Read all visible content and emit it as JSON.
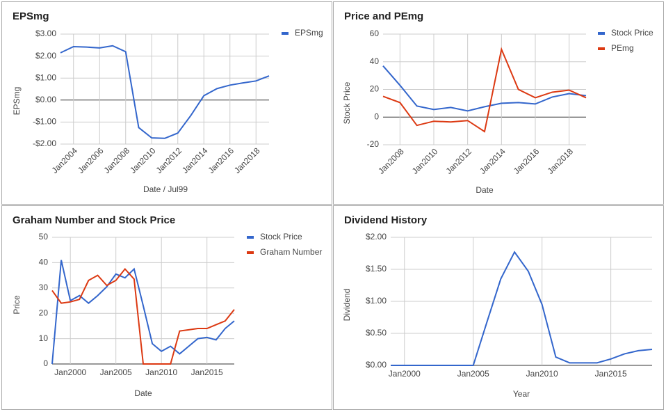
{
  "chart_data": [
    {
      "type": "line",
      "title": "EPSmg",
      "x_label": "Date / Jul99",
      "y_label": "EPSmg",
      "x": [
        2003,
        2004,
        2005,
        2006,
        2007,
        2008,
        2009,
        2010,
        2011,
        2012,
        2013,
        2014,
        2015,
        2016,
        2017,
        2018,
        2019
      ],
      "series": [
        {
          "name": "EPSmg",
          "color": "#3366cc",
          "values": [
            2.15,
            2.43,
            2.41,
            2.37,
            2.47,
            2.2,
            -1.25,
            -1.72,
            -1.74,
            -1.5,
            -0.7,
            0.2,
            0.52,
            0.68,
            0.78,
            0.87,
            1.1
          ]
        }
      ],
      "xlim": [
        2003,
        2019
      ],
      "xticks": [
        {
          "value": 2004,
          "label": "Jan2004"
        },
        {
          "value": 2006,
          "label": "Jan2006"
        },
        {
          "value": 2008,
          "label": "Jan2008"
        },
        {
          "value": 2010,
          "label": "Jan2010"
        },
        {
          "value": 2012,
          "label": "Jan2012"
        },
        {
          "value": 2014,
          "label": "Jan2014"
        },
        {
          "value": 2016,
          "label": "Jan2016"
        },
        {
          "value": 2018,
          "label": "Jan2018"
        }
      ],
      "ylim": [
        -2,
        3
      ],
      "yticks": [
        {
          "value": -2,
          "label": "-$2.00"
        },
        {
          "value": -1,
          "label": "-$1.00"
        },
        {
          "value": 0,
          "label": "$0.00"
        },
        {
          "value": 1,
          "label": "$1.00"
        },
        {
          "value": 2,
          "label": "$2.00"
        },
        {
          "value": 3,
          "label": "$3.00"
        }
      ],
      "grid": true,
      "legend": "right"
    },
    {
      "type": "line",
      "title": "Price and PEmg",
      "x_label": "Date",
      "y_label": "Stock Price",
      "x": [
        2007,
        2008,
        2009,
        2010,
        2011,
        2012,
        2013,
        2014,
        2015,
        2016,
        2017,
        2018,
        2019
      ],
      "series": [
        {
          "name": "Stock Price",
          "color": "#3366cc",
          "values": [
            37,
            23,
            8,
            5.5,
            7,
            4.5,
            7.5,
            10,
            10.5,
            9.5,
            14.5,
            17,
            15.5
          ]
        },
        {
          "name": "PEmg",
          "color": "#dc3912",
          "values": [
            15,
            10.5,
            -6,
            -3,
            -3.5,
            -2.5,
            -10.5,
            49,
            20,
            14,
            18,
            19.5,
            14
          ]
        }
      ],
      "xlim": [
        2007,
        2019
      ],
      "xticks": [
        {
          "value": 2008,
          "label": "Jan2008"
        },
        {
          "value": 2010,
          "label": "Jan2010"
        },
        {
          "value": 2012,
          "label": "Jan2012"
        },
        {
          "value": 2014,
          "label": "Jan2014"
        },
        {
          "value": 2016,
          "label": "Jan2016"
        },
        {
          "value": 2018,
          "label": "Jan2018"
        }
      ],
      "ylim": [
        -20,
        60
      ],
      "yticks": [
        -20,
        0,
        20,
        40,
        60
      ],
      "grid": true,
      "legend": "right"
    },
    {
      "type": "line",
      "title": "Graham Number and Stock Price",
      "x_label": "Date",
      "y_label": "Price",
      "x": [
        1998,
        1999,
        2000,
        2001,
        2002,
        2003,
        2004,
        2005,
        2006,
        2007,
        2008,
        2009,
        2010,
        2011,
        2012,
        2013,
        2014,
        2015,
        2016,
        2017,
        2018
      ],
      "series": [
        {
          "name": "Stock Price",
          "color": "#3366cc",
          "values": [
            0,
            41,
            25,
            27,
            24,
            27,
            30.5,
            35.5,
            34,
            37.5,
            23,
            8,
            5,
            7,
            4,
            7,
            10,
            10.5,
            9.5,
            14,
            17
          ]
        },
        {
          "name": "Graham Number",
          "color": "#dc3912",
          "values": [
            29,
            24,
            24.5,
            25.5,
            33,
            35,
            31,
            33,
            37.5,
            33.5,
            0,
            0,
            0,
            0,
            13,
            13.5,
            14,
            14,
            15.5,
            17,
            21.5
          ]
        }
      ],
      "xlim": [
        1998,
        2018
      ],
      "xticks": [
        {
          "value": 2000,
          "label": "Jan2000"
        },
        {
          "value": 2005,
          "label": "Jan2005"
        },
        {
          "value": 2010,
          "label": "Jan2010"
        },
        {
          "value": 2015,
          "label": "Jan2015"
        }
      ],
      "ylim": [
        0,
        50
      ],
      "yticks": [
        0,
        10,
        20,
        30,
        40,
        50
      ],
      "grid": true,
      "legend": "right"
    },
    {
      "type": "line",
      "title": "Dividend History",
      "x_label": "Year",
      "y_label": "Dividend",
      "x": [
        1999,
        2000,
        2001,
        2002,
        2003,
        2004,
        2005,
        2006,
        2007,
        2008,
        2009,
        2010,
        2011,
        2012,
        2013,
        2014,
        2015,
        2016,
        2017,
        2018
      ],
      "series": [
        {
          "name": "Dividend",
          "color": "#3366cc",
          "values": [
            0,
            0,
            0,
            0,
            0,
            0,
            0,
            0.68,
            1.35,
            1.77,
            1.47,
            0.95,
            0.13,
            0.04,
            0.04,
            0.04,
            0.1,
            0.18,
            0.23,
            0.25
          ]
        }
      ],
      "xlim": [
        1999,
        2018
      ],
      "xticks": [
        {
          "value": 2000,
          "label": "Jan2000"
        },
        {
          "value": 2005,
          "label": "Jan2005"
        },
        {
          "value": 2010,
          "label": "Jan2010"
        },
        {
          "value": 2015,
          "label": "Jan2015"
        }
      ],
      "ylim": [
        0,
        2
      ],
      "yticks": [
        {
          "value": 0,
          "label": "$0.00"
        },
        {
          "value": 0.5,
          "label": "$0.50"
        },
        {
          "value": 1,
          "label": "$1.00"
        },
        {
          "value": 1.5,
          "label": "$1.50"
        },
        {
          "value": 2,
          "label": "$2.00"
        }
      ],
      "grid": true,
      "legend": "none"
    }
  ]
}
